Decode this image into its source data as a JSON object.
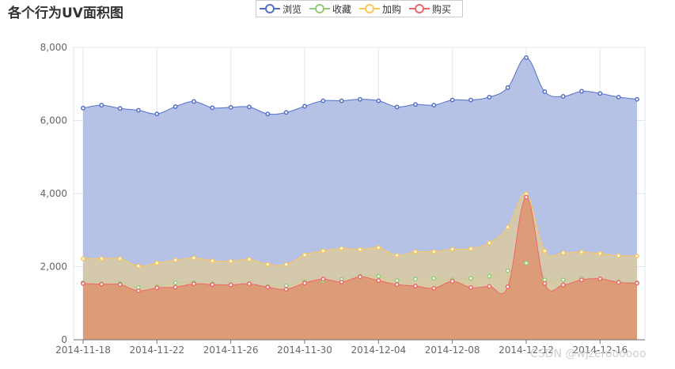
{
  "title": "各个行为UV面积图",
  "watermark": "CSDN @wjzeroooooo",
  "chart_data": {
    "type": "area",
    "title": "各个行为UV面积图",
    "xlabel": "",
    "ylabel": "",
    "ylim": [
      0,
      8000
    ],
    "yticks": [
      0,
      2000,
      4000,
      6000,
      8000
    ],
    "ytick_labels": [
      "0",
      "2,000",
      "4,000",
      "6,000",
      "8,000"
    ],
    "xtick_labels": [
      "2014-11-18",
      "2014-11-22",
      "2014-11-26",
      "2014-11-30",
      "2014-12-04",
      "2014-12-08",
      "2014-12-12",
      "2014-12-16"
    ],
    "xtick_start_index": 0,
    "xtick_step": 4,
    "grid": true,
    "legend_position": "top-center",
    "x": [
      "2014-11-18",
      "2014-11-19",
      "2014-11-20",
      "2014-11-21",
      "2014-11-22",
      "2014-11-23",
      "2014-11-24",
      "2014-11-25",
      "2014-11-26",
      "2014-11-27",
      "2014-11-28",
      "2014-11-29",
      "2014-11-30",
      "2014-12-01",
      "2014-12-02",
      "2014-12-03",
      "2014-12-04",
      "2014-12-05",
      "2014-12-06",
      "2014-12-07",
      "2014-12-08",
      "2014-12-09",
      "2014-12-10",
      "2014-12-11",
      "2014-12-12",
      "2014-12-13",
      "2014-12-14",
      "2014-12-15",
      "2014-12-16",
      "2014-12-17",
      "2014-12-18"
    ],
    "series": [
      {
        "name": "浏览",
        "color": "#5470c6",
        "fill": "#a9b6e2",
        "values": [
          6340,
          6420,
          6330,
          6280,
          6180,
          6380,
          6520,
          6350,
          6360,
          6370,
          6180,
          6220,
          6390,
          6540,
          6540,
          6580,
          6540,
          6370,
          6440,
          6420,
          6560,
          6560,
          6640,
          6900,
          7720,
          6790,
          6660,
          6800,
          6740,
          6640,
          6580
        ]
      },
      {
        "name": "收藏",
        "color": "#91cc75",
        "fill": "#c8d9a8",
        "values": [
          1560,
          1530,
          1540,
          1430,
          1450,
          1560,
          1560,
          1530,
          1510,
          1530,
          1460,
          1480,
          1580,
          1620,
          1650,
          1740,
          1740,
          1620,
          1660,
          1680,
          1640,
          1680,
          1740,
          1890,
          2100,
          1640,
          1640,
          1680,
          1660,
          1580,
          1560
        ]
      },
      {
        "name": "加购",
        "color": "#fac858",
        "fill": "#d9c9a2",
        "values": [
          2220,
          2220,
          2220,
          2020,
          2100,
          2180,
          2240,
          2160,
          2150,
          2200,
          2060,
          2060,
          2320,
          2430,
          2500,
          2470,
          2520,
          2310,
          2410,
          2410,
          2480,
          2490,
          2650,
          3080,
          3990,
          2430,
          2380,
          2400,
          2360,
          2300,
          2290
        ]
      },
      {
        "name": "购买",
        "color": "#ee6666",
        "fill": "#dd9470",
        "values": [
          1540,
          1520,
          1510,
          1340,
          1420,
          1440,
          1530,
          1510,
          1500,
          1530,
          1440,
          1380,
          1550,
          1660,
          1580,
          1720,
          1620,
          1510,
          1470,
          1410,
          1600,
          1430,
          1460,
          1450,
          3900,
          1540,
          1500,
          1640,
          1670,
          1570,
          1550
        ]
      }
    ]
  },
  "legend": [
    {
      "name": "浏览",
      "color": "#5470c6"
    },
    {
      "name": "收藏",
      "color": "#91cc75"
    },
    {
      "name": "加购",
      "color": "#fac858"
    },
    {
      "name": "购买",
      "color": "#ee6666"
    }
  ]
}
